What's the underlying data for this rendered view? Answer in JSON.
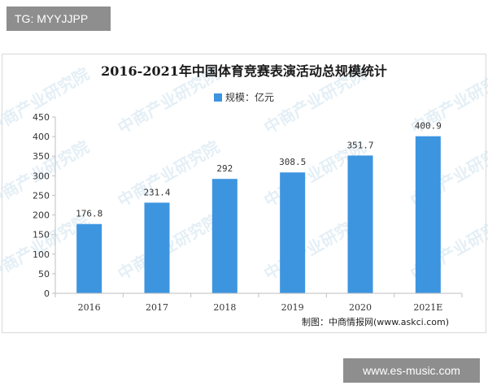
{
  "top_tag": "TG: MYYJJPP",
  "bottom_tag": "www.es-music.com",
  "source_note": "制图：中商情报网(www.askci.com)",
  "watermark_text": "中商产业研究院",
  "colors": {
    "bar": "#3d95e0",
    "axis": "#bfbfbf",
    "grid": "#e6e6e6"
  },
  "chart_data": {
    "type": "bar",
    "title": "2016-2021年中国体育竞赛表演活动总规模统计",
    "legend": {
      "label": "规模：亿元",
      "position": "top-center"
    },
    "categories": [
      "2016",
      "2017",
      "2018",
      "2019",
      "2020",
      "2021E"
    ],
    "series": [
      {
        "name": "规模：亿元",
        "values": [
          176.8,
          231.4,
          292,
          308.5,
          351.7,
          400.9
        ]
      }
    ],
    "data_labels": [
      "176.8",
      "231.4",
      "292",
      "308.5",
      "351.7",
      "400.9"
    ],
    "ylim": [
      0,
      450
    ],
    "yticks": [
      0,
      50,
      100,
      150,
      200,
      250,
      300,
      350,
      400,
      450
    ],
    "grid": false
  }
}
